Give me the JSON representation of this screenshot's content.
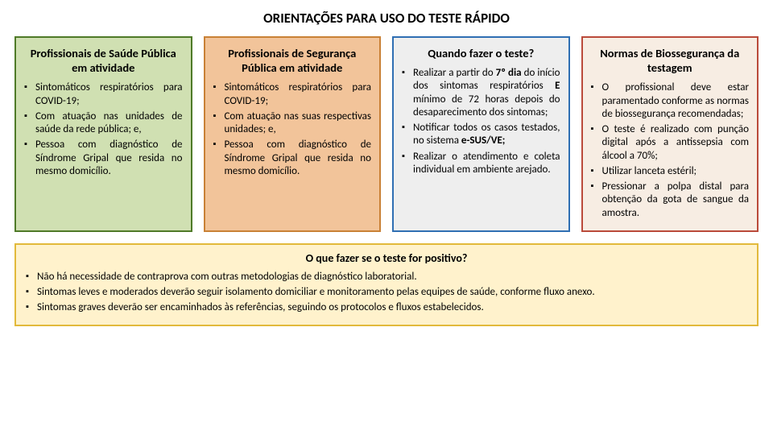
{
  "title": "ORIENTAÇÕES PARA USO DO TESTE RÁPIDO",
  "cards": [
    {
      "heading": "Profissionais de Saúde Pública em atividade",
      "bg": "#d0e0b2",
      "border": "#4f7a28",
      "items": [
        "Sintomáticos respiratórios para COVID-19;",
        "Com atuação nas unidades de saúde da rede pública; e,",
        "Pessoa com diagnóstico de Síndrome Gripal que resida no mesmo domicílio."
      ]
    },
    {
      "heading": "Profissionais de Segurança Pública em atividade",
      "bg": "#f2c49a",
      "border": "#c98136",
      "items": [
        "Sintomáticos respiratórios para COVID-19;",
        "Com atuação nas suas respectivas unidades; e,",
        "Pessoa com diagnóstico de Síndrome Gripal que resida no mesmo domicílio."
      ]
    },
    {
      "heading": "Quando fazer o teste?",
      "bg": "#eeeeee",
      "border": "#2f6fb3",
      "items_html": [
        "Realizar a partir do <span class='bold'>7º dia</span> do início dos sintomas respiratórios <span class='bold'>E</span> mínimo de 72 horas depois do desaparecimento dos sintomas;",
        "Notificar todos os casos testados, no sistema <span class='bold'>e-SUS/VE;</span>",
        "Realizar o atendimento e coleta individual em ambiente arejado."
      ]
    },
    {
      "heading": "Normas de Biossegurança da testagem",
      "bg": "#f7ede3",
      "border": "#ba4a3a",
      "items": [
        "O profissional deve estar paramentado conforme as normas de biossegurança recomendadas;",
        "O teste é realizado com punção digital após a antissepsia com álcool a 70%;",
        "Utilizar lanceta estéril;",
        "Pressionar a polpa distal para obtenção da gota de sangue da amostra."
      ]
    }
  ],
  "bottom": {
    "bg": "#fff2cc",
    "border": "#e2b93b",
    "heading": "O que fazer se o teste for positivo?",
    "items": [
      "Não há necessidade de contraprova com outras metodologias de diagnóstico laboratorial.",
      "Sintomas leves e moderados deverão seguir isolamento domiciliar e monitoramento pelas equipes de saúde, conforme fluxo anexo.",
      "Sintomas graves deverão ser encaminhados às referências, seguindo os protocolos e fluxos estabelecidos."
    ]
  }
}
